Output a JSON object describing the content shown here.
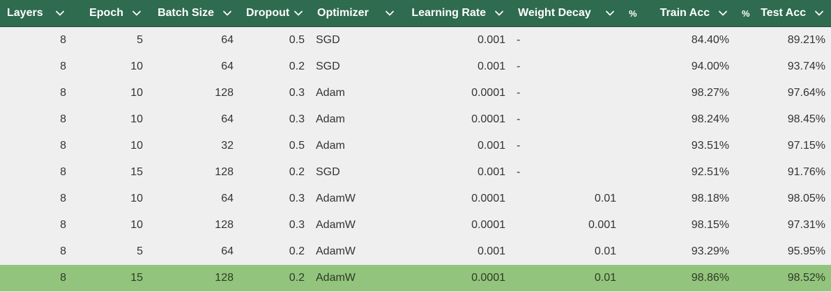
{
  "table": {
    "columns": [
      {
        "key": "layers",
        "label": "Layers",
        "percent": ""
      },
      {
        "key": "epoch",
        "label": "Epoch",
        "percent": ""
      },
      {
        "key": "batch",
        "label": "Batch Size",
        "percent": ""
      },
      {
        "key": "dropout",
        "label": "Dropout",
        "percent": ""
      },
      {
        "key": "optimizer",
        "label": "Optimizer",
        "percent": ""
      },
      {
        "key": "lr",
        "label": "Learning Rate",
        "percent": ""
      },
      {
        "key": "wd",
        "label": "Weight Decay",
        "percent": ""
      },
      {
        "key": "train",
        "label": "Train Acc",
        "percent": "%"
      },
      {
        "key": "test",
        "label": "Test Acc",
        "percent": "%"
      }
    ],
    "rows": [
      {
        "layers": "8",
        "epoch": "5",
        "batch": "64",
        "dropout": "0.5",
        "optimizer": "SGD",
        "lr": "0.001",
        "wd": "-",
        "train": "84.40%",
        "test": "89.21%"
      },
      {
        "layers": "8",
        "epoch": "10",
        "batch": "64",
        "dropout": "0.2",
        "optimizer": "SGD",
        "lr": "0.001",
        "wd": "-",
        "train": "94.00%",
        "test": "93.74%"
      },
      {
        "layers": "8",
        "epoch": "10",
        "batch": "128",
        "dropout": "0.3",
        "optimizer": "Adam",
        "lr": "0.0001",
        "wd": "-",
        "train": "98.27%",
        "test": "97.64%"
      },
      {
        "layers": "8",
        "epoch": "10",
        "batch": "64",
        "dropout": "0.3",
        "optimizer": "Adam",
        "lr": "0.0001",
        "wd": "-",
        "train": "98.24%",
        "test": "98.45%"
      },
      {
        "layers": "8",
        "epoch": "10",
        "batch": "32",
        "dropout": "0.5",
        "optimizer": "Adam",
        "lr": "0.001",
        "wd": "-",
        "train": "93.51%",
        "test": "97.15%"
      },
      {
        "layers": "8",
        "epoch": "15",
        "batch": "128",
        "dropout": "0.2",
        "optimizer": "SGD",
        "lr": "0.001",
        "wd": "-",
        "train": "92.51%",
        "test": "91.76%"
      },
      {
        "layers": "8",
        "epoch": "10",
        "batch": "64",
        "dropout": "0.3",
        "optimizer": "AdamW",
        "lr": "0.0001",
        "wd": "0.01",
        "train": "98.18%",
        "test": "98.05%"
      },
      {
        "layers": "8",
        "epoch": "10",
        "batch": "128",
        "dropout": "0.3",
        "optimizer": "AdamW",
        "lr": "0.0001",
        "wd": "0.001",
        "train": "98.15%",
        "test": "97.31%"
      },
      {
        "layers": "8",
        "epoch": "5",
        "batch": "64",
        "dropout": "0.2",
        "optimizer": "AdamW",
        "lr": "0.001",
        "wd": "0.01",
        "train": "93.29%",
        "test": "95.95%"
      },
      {
        "layers": "8",
        "epoch": "15",
        "batch": "128",
        "dropout": "0.2",
        "optimizer": "AdamW",
        "lr": "0.0001",
        "wd": "0.01",
        "train": "98.86%",
        "test": "98.52%"
      }
    ],
    "highlighted_row": 9
  },
  "colors": {
    "header_bg": "#2e6b4f",
    "row_bg": "#efefef",
    "highlight_bg": "#93c47d"
  },
  "icons": {
    "header_sort": "chevron-down-icon"
  }
}
